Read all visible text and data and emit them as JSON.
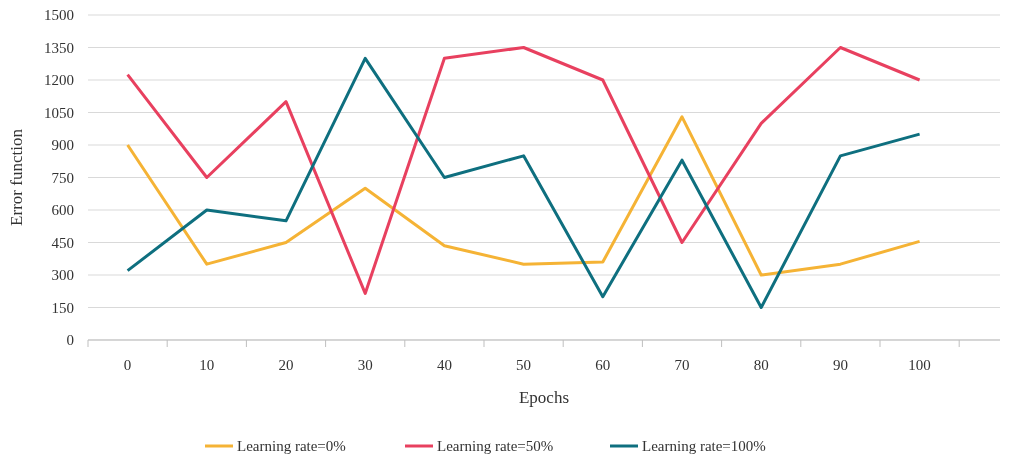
{
  "chart_data": {
    "type": "line",
    "xlabel": "Epochs",
    "ylabel": "Error function",
    "categories": [
      "0",
      "10",
      "20",
      "30",
      "40",
      "50",
      "60",
      "70",
      "80",
      "90",
      "100"
    ],
    "series": [
      {
        "name": "Learning rate=0%",
        "color": "#f5b335",
        "values": [
          900,
          350,
          450,
          700,
          435,
          350,
          360,
          1030,
          300,
          350,
          455
        ]
      },
      {
        "name": "Learning rate=50%",
        "color": "#e8405f",
        "values": [
          1225,
          750,
          1100,
          215,
          1300,
          1350,
          1200,
          450,
          1000,
          1350,
          1200
        ]
      },
      {
        "name": "Learning rate=100%",
        "color": "#0e6f7f",
        "values": [
          320,
          600,
          550,
          1300,
          750,
          850,
          200,
          830,
          150,
          850,
          950
        ]
      }
    ],
    "ylim": [
      0,
      1500
    ],
    "yticks": [
      0,
      150,
      300,
      450,
      600,
      750,
      900,
      1050,
      1200,
      1350,
      1500
    ],
    "grid": "y",
    "legend": "bottom",
    "marker": "none",
    "line_style": "solid"
  }
}
